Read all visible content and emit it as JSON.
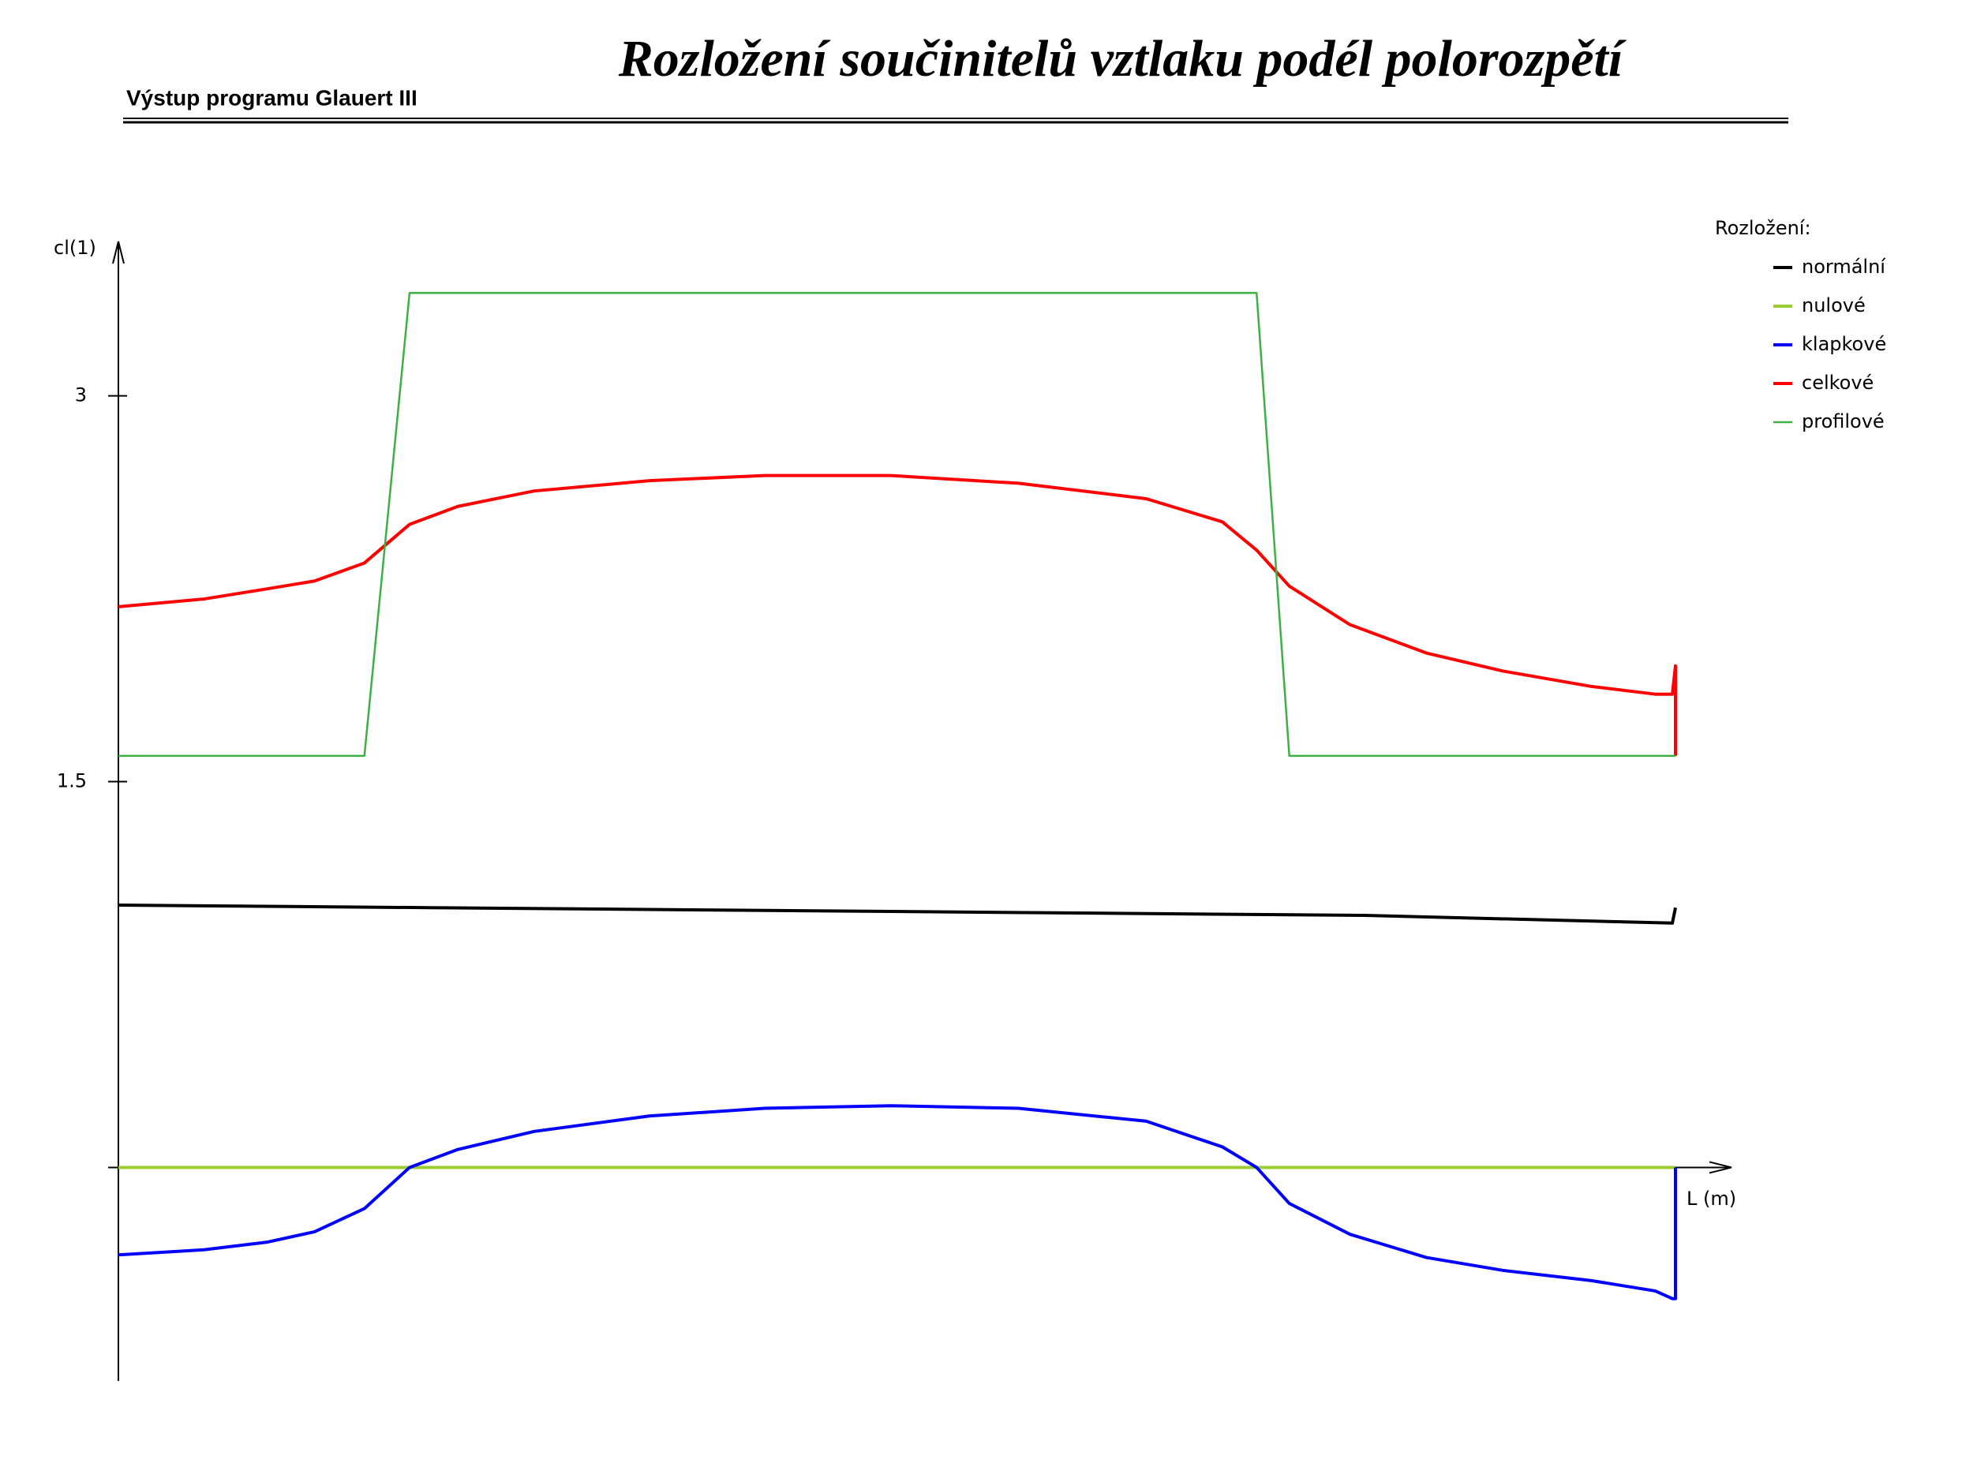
{
  "header": {
    "program": "Výstup programu Glauert III"
  },
  "chart_data": {
    "type": "line",
    "title": "Rozložení součinitelů vztlaku podél polorozpětí",
    "y_label": "cl(1)",
    "x_label": "L (m)",
    "legend_title": "Rozložení:",
    "legend_position": "top-right",
    "xlim": [
      0,
      1
    ],
    "ylim": [
      -0.83,
      3.6
    ],
    "yticks": [
      {
        "value": 0,
        "label": null
      },
      1.5,
      3
    ],
    "series": [
      {
        "name": "normální",
        "color": "#000000",
        "x": [
          0,
          0.2,
          0.4,
          0.6,
          0.8,
          0.998,
          1
        ],
        "values": [
          1.02,
          1.01,
          1.0,
          0.99,
          0.98,
          0.95,
          1.01
        ]
      },
      {
        "name": "nulové",
        "color": "#9acd32",
        "x": [
          0,
          1
        ],
        "values": [
          0,
          0
        ]
      },
      {
        "name": "klapkové",
        "color": "#0000ff",
        "x": [
          0,
          0.055,
          0.096,
          0.126,
          0.158,
          0.187,
          0.218,
          0.267,
          0.341,
          0.415,
          0.496,
          0.578,
          0.66,
          0.709,
          0.731,
          0.752,
          0.791,
          0.84,
          0.889,
          0.946,
          0.987,
          0.998,
          1,
          1
        ],
        "values": [
          -0.34,
          -0.32,
          -0.29,
          -0.25,
          -0.16,
          0,
          0.07,
          0.14,
          0.2,
          0.23,
          0.24,
          0.23,
          0.18,
          0.08,
          0,
          -0.14,
          -0.26,
          -0.35,
          -0.4,
          -0.44,
          -0.48,
          -0.51,
          -0.51,
          0
        ]
      },
      {
        "name": "celkové",
        "color": "#ff0000",
        "x": [
          0,
          0.055,
          0.096,
          0.126,
          0.158,
          0.187,
          0.218,
          0.267,
          0.341,
          0.415,
          0.496,
          0.578,
          0.66,
          0.709,
          0.731,
          0.752,
          0.791,
          0.84,
          0.889,
          0.946,
          0.987,
          0.998,
          1,
          1
        ],
        "values": [
          2.18,
          2.21,
          2.25,
          2.28,
          2.35,
          2.5,
          2.57,
          2.63,
          2.67,
          2.69,
          2.69,
          2.66,
          2.6,
          2.51,
          2.4,
          2.26,
          2.11,
          2.0,
          1.93,
          1.87,
          1.84,
          1.84,
          1.95,
          1.6
        ]
      },
      {
        "name": "profilové",
        "color": "#3cb043",
        "x": [
          0,
          0.158,
          0.187,
          0.731,
          0.752,
          1
        ],
        "values": [
          1.6,
          1.6,
          3.4,
          3.4,
          1.6,
          1.6
        ]
      }
    ]
  }
}
